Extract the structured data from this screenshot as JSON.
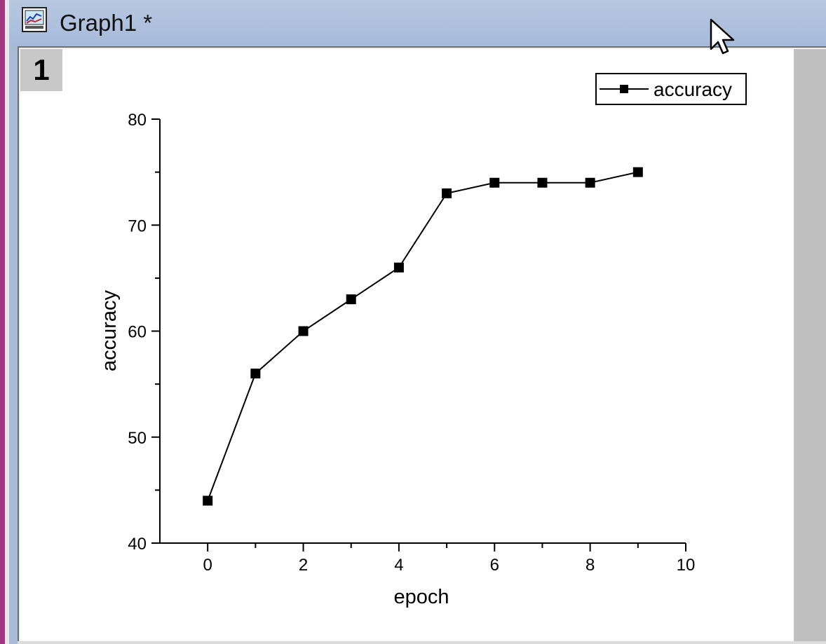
{
  "window": {
    "title": "Graph1 *",
    "icon": "graph-window-icon",
    "layer_label": "1"
  },
  "colors": {
    "titlebar": "#a9bcd6",
    "left_accent": "#a2367f",
    "canvas": "#ffffff",
    "gutter": "#c0c0c0",
    "series": "#000000"
  },
  "chart_data": {
    "type": "line",
    "title": "",
    "xlabel": "epoch",
    "ylabel": "accuracy",
    "xlim": [
      -1,
      10
    ],
    "ylim": [
      40,
      80
    ],
    "xticks": [
      0,
      2,
      4,
      6,
      8,
      10
    ],
    "yticks": [
      40,
      50,
      60,
      70,
      80
    ],
    "grid": false,
    "legend": "top-right",
    "series": [
      {
        "name": "accuracy",
        "marker": "filled-square",
        "x": [
          0,
          1,
          2,
          3,
          4,
          5,
          6,
          7,
          8,
          9
        ],
        "y": [
          44,
          56,
          60,
          63,
          66,
          73,
          74,
          74,
          74,
          75
        ]
      }
    ]
  }
}
